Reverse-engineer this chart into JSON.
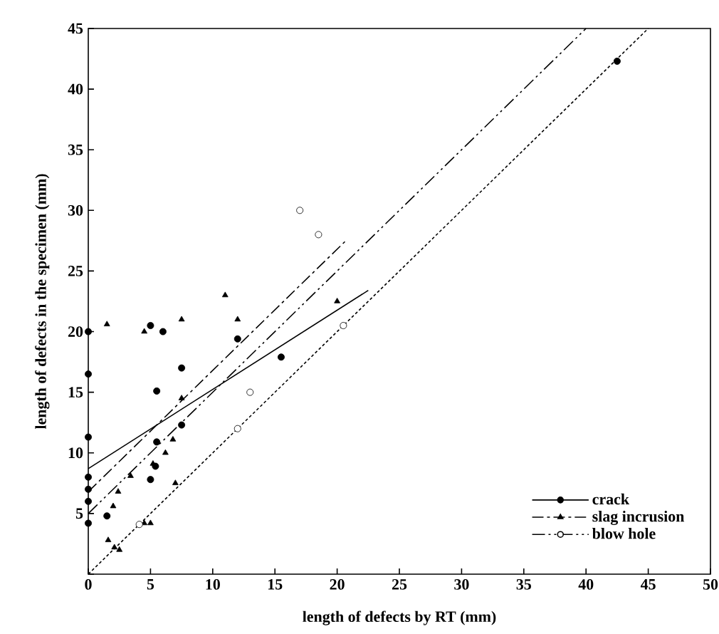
{
  "chart_data": {
    "type": "scatter",
    "xlabel": "length of defects by RT (mm)",
    "ylabel": "length of defects in the specimen (mm)",
    "xlim": [
      0,
      50
    ],
    "ylim": [
      0,
      45
    ],
    "xticks": [
      0,
      5,
      10,
      15,
      20,
      25,
      30,
      35,
      40,
      45,
      50
    ],
    "yticks": [
      {
        "value": 0,
        "label": null
      },
      5,
      10,
      15,
      20,
      25,
      30,
      35,
      40,
      45
    ],
    "legend": "bottom right",
    "grid": false,
    "series": [
      {
        "name": "crack",
        "marker": "circle",
        "color": "#000000",
        "x": [
          0,
          0,
          0,
          0,
          0,
          0,
          0,
          1.5,
          5,
          6,
          5.5,
          7.5,
          7.5,
          5.5,
          5,
          5.4,
          12,
          15.5,
          42.5
        ],
        "values": [
          20,
          16.5,
          11.3,
          8,
          7,
          6,
          4.2,
          4.8,
          20.5,
          20,
          15.1,
          17,
          12.3,
          10.9,
          7.8,
          8.9,
          19.4,
          17.9,
          42.3
        ]
      },
      {
        "name": "slag incrusion",
        "marker": "triangle",
        "color": "#000000",
        "x": [
          1.5,
          4.5,
          7.5,
          7.5,
          6.8,
          6.2,
          5.2,
          3.4,
          2.4,
          2,
          4.5,
          5,
          1.6,
          2.1,
          2.5,
          7,
          11,
          12,
          20
        ],
        "values": [
          20.6,
          20,
          21,
          14.5,
          11.1,
          10,
          9.1,
          8.1,
          6.8,
          5.6,
          4.2,
          4.2,
          2.8,
          2.2,
          2,
          7.5,
          23,
          21,
          22.5
        ]
      },
      {
        "name": "blow hole",
        "marker": "circle",
        "color": "#ffffff",
        "x": [
          13,
          12,
          4.1,
          17,
          18.5,
          20.5
        ],
        "values": [
          15,
          12,
          4.1,
          30,
          28,
          20.5
        ]
      },
      {
        "type": "line",
        "line_style": "solid",
        "color": "#000000",
        "x": [
          0,
          22.5
        ],
        "values": [
          8.7,
          23.4
        ]
      },
      {
        "type": "line",
        "line_style": "dashdot",
        "color": "#000000",
        "x": [
          0,
          20.8
        ],
        "values": [
          6.8,
          27.6
        ]
      },
      {
        "type": "line",
        "line_style": "dashdotdot",
        "color": "#000000",
        "x": [
          0,
          40
        ],
        "values": [
          5,
          45
        ]
      },
      {
        "type": "line",
        "line_style": "dashed",
        "color": "#000000",
        "x": [
          0,
          45
        ],
        "values": [
          0,
          45
        ]
      }
    ]
  }
}
